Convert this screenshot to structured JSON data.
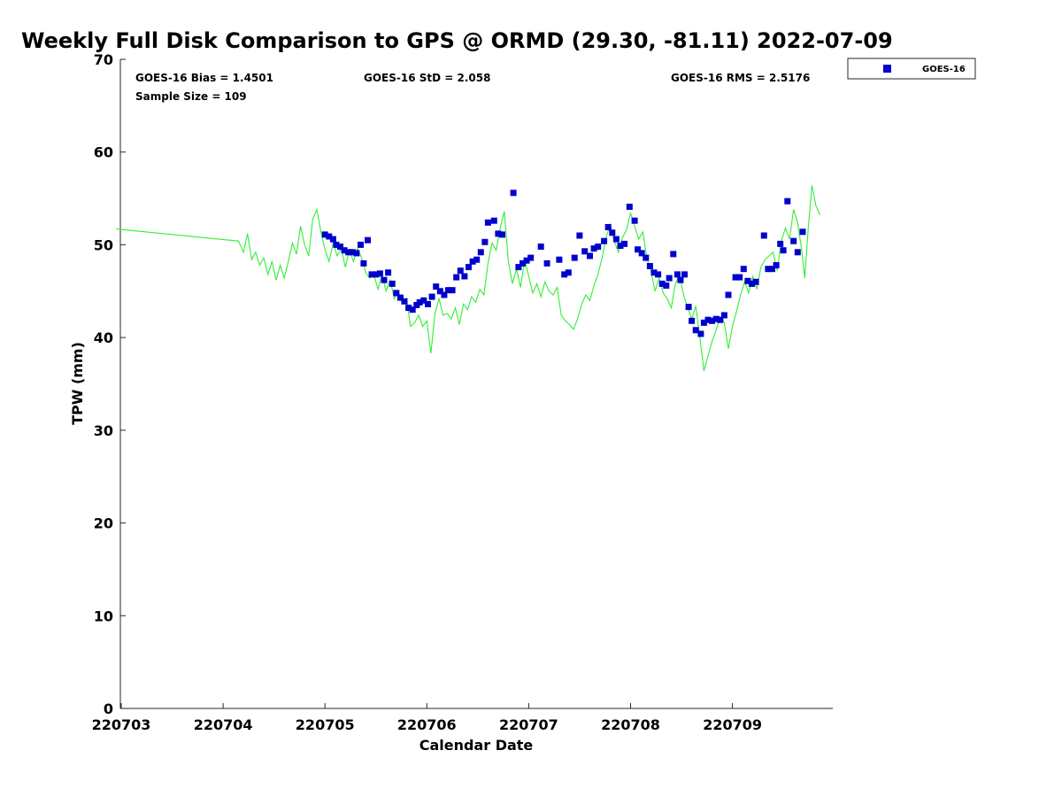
{
  "chart_data": {
    "type": "scatter",
    "title": "Weekly Full Disk Comparison to GPS @ ORMD (29.30, -81.11) 2022-07-09",
    "xlabel": "Calendar Date",
    "ylabel": "TPW (mm)",
    "xlim": [
      0,
      7
    ],
    "ylim": [
      0,
      70
    ],
    "x_tick_labels": [
      "220703",
      "220704",
      "220705",
      "220706",
      "220707",
      "220708",
      "220709"
    ],
    "y_ticks": [
      0,
      10,
      20,
      30,
      40,
      50,
      60,
      70
    ],
    "legend": {
      "placement": "top-right, outside plot",
      "entries": [
        "GOES-16"
      ]
    },
    "stats": {
      "bias": "GOES-16 Bias = 1.4501",
      "std": "GOES-16 StD = 2.058",
      "rms": "GOES-16 RMS = 2.5176",
      "sample_size": "Sample Size = 109"
    },
    "series": [
      {
        "name": "GOES-16",
        "kind": "scatter",
        "color": "#0000cc",
        "marker": "square",
        "points": [
          [
            2.0,
            51.1
          ],
          [
            2.04,
            50.9
          ],
          [
            2.08,
            50.6
          ],
          [
            2.11,
            50.0
          ],
          [
            2.15,
            49.8
          ],
          [
            2.19,
            49.4
          ],
          [
            2.23,
            49.2
          ],
          [
            2.27,
            49.2
          ],
          [
            2.31,
            49.1
          ],
          [
            2.35,
            50.0
          ],
          [
            2.38,
            48.0
          ],
          [
            2.42,
            50.5
          ],
          [
            2.46,
            46.8
          ],
          [
            2.5,
            46.8
          ],
          [
            2.54,
            46.9
          ],
          [
            2.58,
            46.2
          ],
          [
            2.62,
            47.0
          ],
          [
            2.66,
            45.8
          ],
          [
            2.7,
            44.8
          ],
          [
            2.74,
            44.3
          ],
          [
            2.78,
            43.9
          ],
          [
            2.82,
            43.2
          ],
          [
            2.86,
            43.0
          ],
          [
            2.9,
            43.5
          ],
          [
            2.93,
            43.8
          ],
          [
            2.97,
            44.0
          ],
          [
            3.01,
            43.6
          ],
          [
            3.05,
            44.4
          ],
          [
            3.09,
            45.5
          ],
          [
            3.13,
            45.0
          ],
          [
            3.17,
            44.6
          ],
          [
            3.21,
            45.1
          ],
          [
            3.25,
            45.1
          ],
          [
            3.29,
            46.5
          ],
          [
            3.33,
            47.2
          ],
          [
            3.37,
            46.6
          ],
          [
            3.41,
            47.6
          ],
          [
            3.45,
            48.2
          ],
          [
            3.49,
            48.4
          ],
          [
            3.53,
            49.2
          ],
          [
            3.57,
            50.3
          ],
          [
            3.6,
            52.4
          ],
          [
            3.66,
            52.6
          ],
          [
            3.7,
            51.2
          ],
          [
            3.74,
            51.1
          ],
          [
            3.85,
            55.6
          ],
          [
            3.9,
            47.6
          ],
          [
            3.94,
            48.0
          ],
          [
            3.98,
            48.3
          ],
          [
            4.02,
            48.6
          ],
          [
            4.12,
            49.8
          ],
          [
            4.18,
            48.0
          ],
          [
            4.3,
            48.4
          ],
          [
            4.35,
            46.8
          ],
          [
            4.39,
            47.0
          ],
          [
            4.45,
            48.6
          ],
          [
            4.5,
            51.0
          ],
          [
            4.55,
            49.3
          ],
          [
            4.6,
            48.8
          ],
          [
            4.64,
            49.6
          ],
          [
            4.68,
            49.8
          ],
          [
            4.74,
            50.4
          ],
          [
            4.78,
            51.9
          ],
          [
            4.82,
            51.3
          ],
          [
            4.86,
            50.6
          ],
          [
            4.9,
            49.9
          ],
          [
            4.94,
            50.1
          ],
          [
            4.99,
            54.1
          ],
          [
            5.04,
            52.6
          ],
          [
            5.07,
            49.5
          ],
          [
            5.11,
            49.1
          ],
          [
            5.15,
            48.6
          ],
          [
            5.19,
            47.7
          ],
          [
            5.23,
            47.0
          ],
          [
            5.27,
            46.8
          ],
          [
            5.31,
            45.8
          ],
          [
            5.35,
            45.6
          ],
          [
            5.38,
            46.4
          ],
          [
            5.42,
            49.0
          ],
          [
            5.46,
            46.8
          ],
          [
            5.49,
            46.2
          ],
          [
            5.53,
            46.8
          ],
          [
            5.57,
            43.3
          ],
          [
            5.6,
            41.8
          ],
          [
            5.64,
            40.8
          ],
          [
            5.69,
            40.4
          ],
          [
            5.72,
            41.6
          ],
          [
            5.76,
            41.9
          ],
          [
            5.8,
            41.8
          ],
          [
            5.84,
            42.0
          ],
          [
            5.88,
            41.9
          ],
          [
            5.92,
            42.4
          ],
          [
            5.96,
            44.6
          ],
          [
            6.03,
            46.5
          ],
          [
            6.07,
            46.5
          ],
          [
            6.11,
            47.4
          ],
          [
            6.15,
            46.1
          ],
          [
            6.19,
            45.8
          ],
          [
            6.23,
            46.0
          ],
          [
            6.31,
            51.0
          ],
          [
            6.35,
            47.4
          ],
          [
            6.39,
            47.4
          ],
          [
            6.43,
            47.8
          ],
          [
            6.47,
            50.1
          ],
          [
            6.5,
            49.4
          ],
          [
            6.54,
            54.7
          ],
          [
            6.6,
            50.4
          ],
          [
            6.64,
            49.2
          ],
          [
            6.69,
            51.4
          ]
        ]
      },
      {
        "name": "GPS",
        "kind": "line",
        "color": "#33ee33",
        "points": [
          [
            -0.05,
            51.7
          ],
          [
            1.15,
            50.4
          ],
          [
            1.2,
            49.2
          ],
          [
            1.24,
            51.2
          ],
          [
            1.28,
            48.4
          ],
          [
            1.32,
            49.2
          ],
          [
            1.36,
            47.8
          ],
          [
            1.4,
            48.6
          ],
          [
            1.44,
            46.8
          ],
          [
            1.48,
            48.2
          ],
          [
            1.52,
            46.2
          ],
          [
            1.56,
            47.8
          ],
          [
            1.6,
            46.4
          ],
          [
            1.64,
            48.2
          ],
          [
            1.68,
            50.2
          ],
          [
            1.72,
            49.0
          ],
          [
            1.76,
            52.0
          ],
          [
            1.8,
            50.0
          ],
          [
            1.84,
            48.8
          ],
          [
            1.88,
            52.8
          ],
          [
            1.92,
            53.8
          ],
          [
            1.96,
            51.4
          ],
          [
            2.0,
            49.5
          ],
          [
            2.04,
            48.2
          ],
          [
            2.08,
            50.2
          ],
          [
            2.12,
            48.8
          ],
          [
            2.16,
            49.6
          ],
          [
            2.2,
            47.6
          ],
          [
            2.24,
            49.4
          ],
          [
            2.28,
            48.2
          ],
          [
            2.32,
            49.6
          ],
          [
            2.36,
            48.6
          ],
          [
            2.4,
            47.0
          ],
          [
            2.44,
            46.4
          ],
          [
            2.48,
            46.8
          ],
          [
            2.52,
            45.2
          ],
          [
            2.56,
            46.8
          ],
          [
            2.6,
            45.0
          ],
          [
            2.64,
            46.2
          ],
          [
            2.68,
            44.2
          ],
          [
            2.72,
            45.0
          ],
          [
            2.76,
            43.6
          ],
          [
            2.8,
            44.2
          ],
          [
            2.84,
            41.2
          ],
          [
            2.88,
            41.6
          ],
          [
            2.92,
            42.4
          ],
          [
            2.96,
            41.2
          ],
          [
            3.0,
            41.8
          ],
          [
            3.04,
            38.3
          ],
          [
            3.08,
            42.6
          ],
          [
            3.12,
            44.2
          ],
          [
            3.16,
            42.4
          ],
          [
            3.2,
            42.6
          ],
          [
            3.24,
            42.0
          ],
          [
            3.28,
            43.2
          ],
          [
            3.32,
            41.4
          ],
          [
            3.36,
            43.6
          ],
          [
            3.4,
            43.0
          ],
          [
            3.44,
            44.4
          ],
          [
            3.48,
            43.8
          ],
          [
            3.52,
            45.2
          ],
          [
            3.56,
            44.6
          ],
          [
            3.6,
            48.0
          ],
          [
            3.64,
            50.2
          ],
          [
            3.68,
            49.4
          ],
          [
            3.72,
            51.8
          ],
          [
            3.76,
            53.6
          ],
          [
            3.8,
            48.2
          ],
          [
            3.84,
            45.8
          ],
          [
            3.88,
            47.4
          ],
          [
            3.92,
            45.4
          ],
          [
            3.96,
            48.4
          ],
          [
            4.0,
            46.6
          ],
          [
            4.04,
            44.8
          ],
          [
            4.08,
            45.8
          ],
          [
            4.12,
            44.4
          ],
          [
            4.16,
            46.0
          ],
          [
            4.2,
            45.0
          ],
          [
            4.24,
            44.6
          ],
          [
            4.28,
            45.4
          ],
          [
            4.32,
            42.4
          ],
          [
            4.36,
            41.8
          ],
          [
            4.4,
            41.4
          ],
          [
            4.44,
            40.9
          ],
          [
            4.48,
            42.0
          ],
          [
            4.52,
            43.6
          ],
          [
            4.56,
            44.6
          ],
          [
            4.6,
            44.0
          ],
          [
            4.64,
            45.6
          ],
          [
            4.68,
            46.8
          ],
          [
            4.72,
            48.6
          ],
          [
            4.76,
            50.8
          ],
          [
            4.8,
            52.2
          ],
          [
            4.84,
            50.4
          ],
          [
            4.88,
            49.2
          ],
          [
            4.92,
            50.8
          ],
          [
            4.96,
            51.6
          ],
          [
            5.0,
            53.4
          ],
          [
            5.04,
            52.0
          ],
          [
            5.08,
            50.6
          ],
          [
            5.12,
            51.4
          ],
          [
            5.16,
            48.6
          ],
          [
            5.2,
            47.2
          ],
          [
            5.24,
            45.0
          ],
          [
            5.28,
            46.4
          ],
          [
            5.32,
            44.8
          ],
          [
            5.36,
            44.2
          ],
          [
            5.4,
            43.2
          ],
          [
            5.44,
            45.8
          ],
          [
            5.48,
            46.8
          ],
          [
            5.52,
            44.6
          ],
          [
            5.56,
            43.2
          ],
          [
            5.6,
            42.0
          ],
          [
            5.64,
            43.4
          ],
          [
            5.68,
            40.0
          ],
          [
            5.72,
            36.4
          ],
          [
            5.76,
            38.0
          ],
          [
            5.8,
            39.6
          ],
          [
            5.84,
            40.8
          ],
          [
            5.88,
            42.2
          ],
          [
            5.92,
            41.6
          ],
          [
            5.96,
            38.8
          ],
          [
            6.0,
            41.2
          ],
          [
            6.04,
            42.8
          ],
          [
            6.08,
            44.6
          ],
          [
            6.12,
            46.0
          ],
          [
            6.16,
            44.8
          ],
          [
            6.2,
            46.6
          ],
          [
            6.24,
            45.2
          ],
          [
            6.28,
            47.6
          ],
          [
            6.32,
            48.4
          ],
          [
            6.36,
            48.8
          ],
          [
            6.4,
            49.2
          ],
          [
            6.44,
            47.2
          ],
          [
            6.48,
            50.4
          ],
          [
            6.52,
            51.8
          ],
          [
            6.56,
            50.6
          ],
          [
            6.6,
            53.8
          ],
          [
            6.64,
            52.4
          ],
          [
            6.68,
            49.4
          ],
          [
            6.71,
            46.4
          ],
          [
            6.74,
            51.2
          ],
          [
            6.78,
            56.4
          ],
          [
            6.82,
            54.2
          ],
          [
            6.86,
            53.2
          ]
        ]
      }
    ]
  }
}
